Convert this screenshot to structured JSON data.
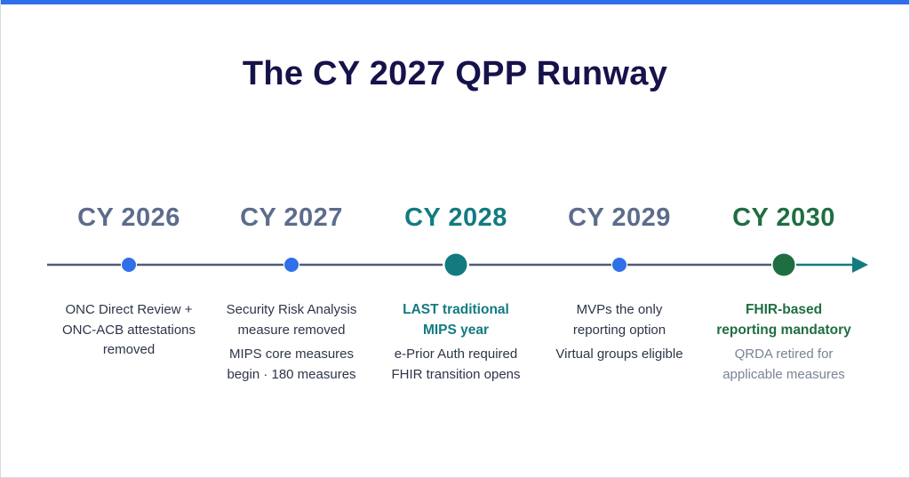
{
  "title": "The CY 2027 QPP Runway",
  "colors": {
    "accent_bar": "#2f6fe8",
    "title": "#16124a",
    "year_default": "#5c6c8c",
    "year_highlight": "#137b80",
    "year_final": "#1f6e42",
    "line": "#4e5d73",
    "dot_blue": "#2f6fe8",
    "dot_teal": "#137b80",
    "dot_green": "#1f6e42",
    "arrow": "#137b80"
  },
  "milestones": [
    {
      "year": "CY 2026",
      "marker": "dot-blue",
      "lines": [
        "ONC Direct Review +",
        "ONC-ACB attestations",
        "removed"
      ],
      "lines2": []
    },
    {
      "year": "CY 2027",
      "marker": "dot-blue",
      "lines": [
        "Security Risk Analysis",
        "measure removed"
      ],
      "lines2": [
        "MIPS core measures",
        "begin · 180 measures"
      ]
    },
    {
      "year": "CY 2028",
      "marker": "dot-teal-large",
      "emphasis": [
        "LAST traditional",
        "MIPS year"
      ],
      "lines2": [
        "e-Prior Auth required",
        "FHIR transition opens"
      ]
    },
    {
      "year": "CY 2029",
      "marker": "dot-blue",
      "lines": [
        "MVPs the only",
        "reporting option"
      ],
      "lines2": [
        "Virtual groups eligible"
      ]
    },
    {
      "year": "CY 2030",
      "marker": "dot-green-large",
      "emphasis": [
        "FHIR-based",
        "reporting mandatory"
      ],
      "lines2": [
        "QRDA retired for",
        "applicable measures"
      ]
    }
  ]
}
